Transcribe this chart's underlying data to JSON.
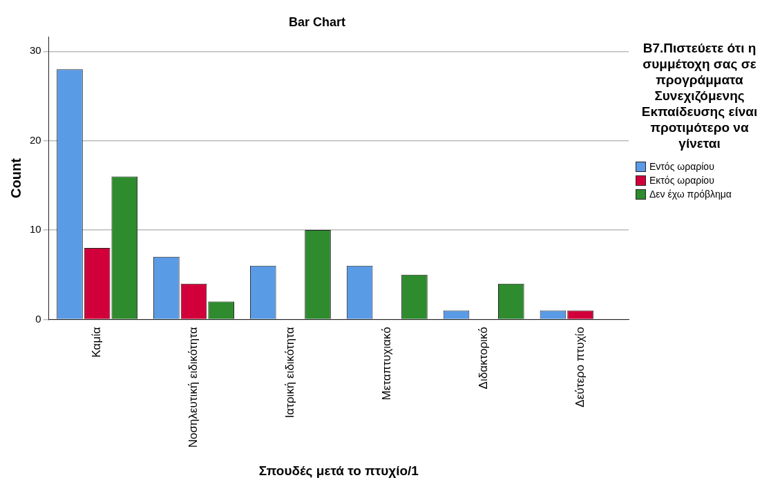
{
  "chart_data": {
    "type": "bar",
    "title": "Bar Chart",
    "xlabel": "Σπουδές μετά το πτυχίο/1",
    "ylabel": "Count",
    "legend_title": "Β7.Πιστεύετε ότι η συμμέτοχη σας σε προγράμματα Συνεχιζόμενης Εκπαίδευσης είναι προτιμότερο να γίνεται",
    "categories": [
      "Καμία",
      "Νοσηλευτική ειδικότητα",
      "Ιατρική ειδικότητα",
      "Μεταπτυχιακό",
      "Διδακτορικό",
      "Δεύτερο πτυχίο"
    ],
    "series": [
      {
        "name": "Εντός ωραρίου",
        "color": "#5a9be6",
        "values": [
          28,
          7,
          6,
          6,
          1,
          1
        ]
      },
      {
        "name": "Εκτός ωραρίου",
        "color": "#d2003a",
        "values": [
          8,
          4,
          null,
          null,
          null,
          1
        ]
      },
      {
        "name": "Δεν έχω πρόβλημα",
        "color": "#2e8b2e",
        "values": [
          16,
          2,
          10,
          5,
          4,
          null
        ]
      }
    ],
    "ylim": [
      0,
      31.6
    ],
    "yticks": [
      0,
      10,
      20,
      30
    ],
    "grid": "y",
    "legend": "right"
  }
}
